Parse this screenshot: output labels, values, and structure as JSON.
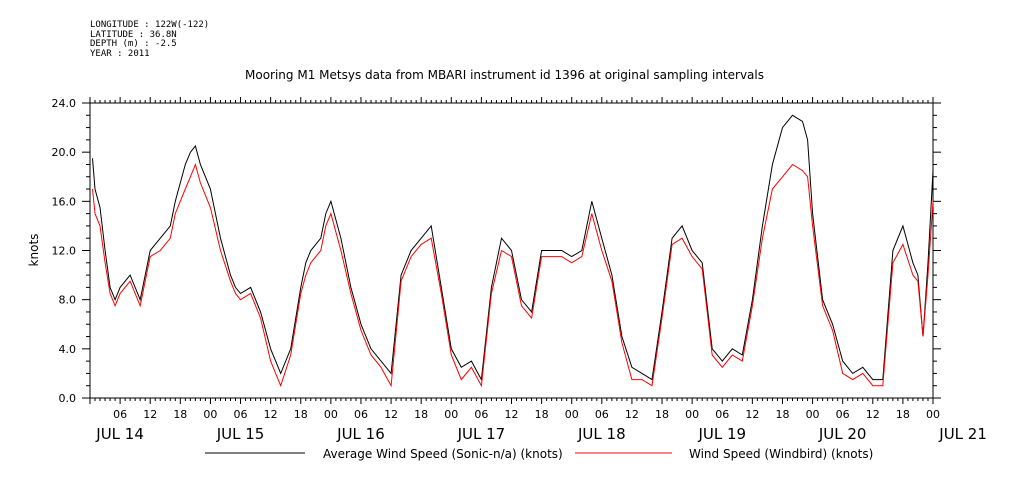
{
  "metadata": {
    "longitude": "LONGITUDE : 122W(-122)",
    "latitude": "LATITUDE : 36.8N",
    "depth": "DEPTH (m) : -2.5",
    "year": "YEAR : 2011"
  },
  "chart_data": {
    "type": "line",
    "title": "Mooring M1 Metsys data from MBARI instrument id 1396 at original sampling intervals",
    "ylabel": "knots",
    "ylim": [
      0,
      24
    ],
    "yticks": [
      "0.0",
      "4.0",
      "8.0",
      "12.0",
      "16.0",
      "20.0",
      "24.0"
    ],
    "xlim_hours": [
      0,
      168
    ],
    "x_unit": "hours since JUL 14 00:00",
    "hour_tick_labels": [
      "06",
      "12",
      "18",
      "00",
      "06",
      "12",
      "18",
      "00",
      "06",
      "12",
      "18",
      "00",
      "06",
      "12",
      "18",
      "00",
      "06",
      "12",
      "18",
      "00",
      "06",
      "12",
      "18",
      "00",
      "06",
      "12",
      "18",
      "00"
    ],
    "day_labels": [
      "JUL 14",
      "JUL 15",
      "JUL 16",
      "JUL 17",
      "JUL 18",
      "JUL 19",
      "JUL 20",
      "JUL 21"
    ],
    "legend_position": "bottom",
    "series": [
      {
        "name": "Average Wind Speed (Sonic-n/a) (knots)",
        "color": "#000000",
        "x": [
          0.5,
          1,
          2,
          3,
          4,
          5,
          6,
          8,
          10,
          12,
          14,
          16,
          17,
          19,
          20,
          21,
          22,
          24,
          26,
          28,
          29,
          30,
          32,
          34,
          36,
          38,
          40,
          42,
          43,
          44,
          46,
          47,
          48,
          50,
          52,
          54,
          56,
          58,
          60,
          62,
          64,
          66,
          68,
          70,
          72,
          74,
          76,
          78,
          80,
          82,
          84,
          86,
          88,
          90,
          92,
          94,
          96,
          98,
          100,
          102,
          104,
          106,
          108,
          110,
          112,
          114,
          116,
          118,
          120,
          122,
          124,
          126,
          128,
          130,
          132,
          134,
          136,
          138,
          140,
          142,
          143,
          144,
          146,
          148,
          150,
          152,
          154,
          156,
          158,
          160,
          162,
          164,
          165,
          166,
          167,
          168
        ],
        "y": [
          19.5,
          17,
          15.5,
          12,
          9,
          8,
          9,
          10,
          8,
          12,
          13,
          14,
          16,
          19,
          20,
          20.5,
          19,
          17,
          13,
          10,
          9,
          8.5,
          9,
          7,
          4,
          2,
          4,
          9,
          11,
          12,
          13,
          15,
          16,
          13,
          9,
          6,
          4,
          3,
          2,
          10,
          12,
          13,
          14,
          9,
          4,
          2.5,
          3,
          1.5,
          9,
          13,
          12,
          8,
          7,
          12,
          12,
          12,
          11.5,
          12,
          16,
          13,
          10,
          5,
          2.5,
          2,
          1.5,
          7,
          13,
          14,
          12,
          11,
          4,
          3,
          4,
          3.5,
          8,
          14,
          19,
          22,
          23,
          22.5,
          21,
          15,
          8,
          6,
          3,
          2,
          2.5,
          1.5,
          1.5,
          12,
          14,
          11,
          10,
          5,
          11,
          18.5
        ]
      },
      {
        "name": "Wind Speed (Windbird) (knots)",
        "color": "#ff0000",
        "x": [
          0.5,
          1,
          2,
          3,
          4,
          5,
          6,
          8,
          10,
          12,
          14,
          16,
          17,
          19,
          20,
          21,
          22,
          24,
          26,
          28,
          29,
          30,
          32,
          34,
          36,
          38,
          40,
          42,
          43,
          44,
          46,
          47,
          48,
          50,
          52,
          54,
          56,
          58,
          60,
          62,
          64,
          66,
          68,
          70,
          72,
          74,
          76,
          78,
          80,
          82,
          84,
          86,
          88,
          90,
          92,
          94,
          96,
          98,
          100,
          102,
          104,
          106,
          108,
          110,
          112,
          114,
          116,
          118,
          120,
          122,
          124,
          126,
          128,
          130,
          132,
          134,
          136,
          138,
          140,
          142,
          143,
          144,
          146,
          148,
          150,
          152,
          154,
          156,
          158,
          160,
          162,
          164,
          165,
          166,
          167,
          168
        ],
        "y": [
          17,
          15,
          14,
          11,
          8.5,
          7.5,
          8.5,
          9.5,
          7.5,
          11.5,
          12,
          13,
          15,
          17,
          18,
          19,
          17.5,
          15.5,
          12,
          9.5,
          8.5,
          8,
          8.5,
          6.5,
          3,
          1,
          3.5,
          8.5,
          10,
          11,
          12,
          14,
          15,
          12,
          8.5,
          5.5,
          3.5,
          2.5,
          1,
          9.5,
          11.5,
          12.5,
          13,
          8.5,
          3.5,
          1.5,
          2.5,
          1,
          8.5,
          12,
          11.5,
          7.5,
          6.5,
          11.5,
          11.5,
          11.5,
          11,
          11.5,
          15,
          12,
          9.5,
          4.5,
          1.5,
          1.5,
          1,
          6.5,
          12.5,
          13,
          11.5,
          10.5,
          3.5,
          2.5,
          3.5,
          3,
          7.5,
          13,
          17,
          18,
          19,
          18.5,
          18,
          14,
          7.5,
          5.5,
          2,
          1.5,
          2,
          1,
          1,
          11,
          12.5,
          10,
          9.5,
          5,
          10,
          16
        ]
      }
    ]
  }
}
